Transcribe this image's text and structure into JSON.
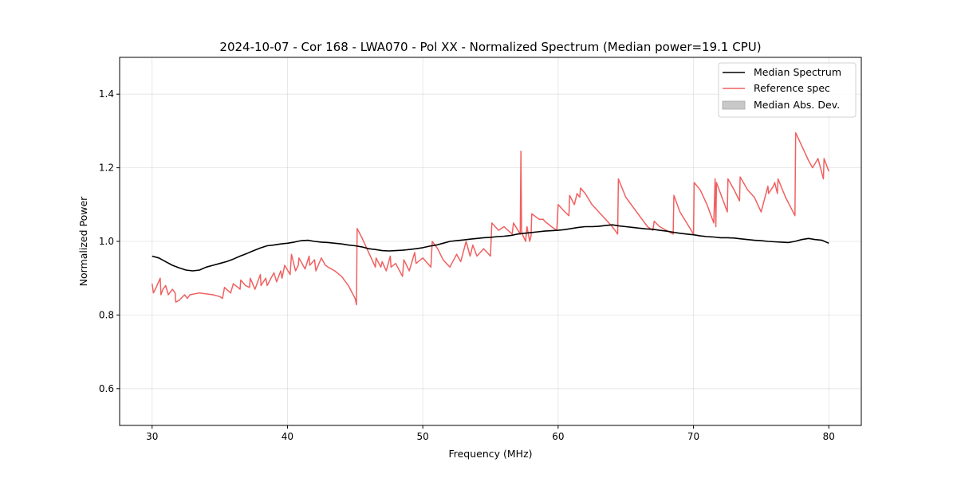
{
  "chart_data": {
    "type": "line",
    "title": "2024-10-07 - Cor 168 - LWA070 - Pol XX - Normalized Spectrum (Median power=19.1 CPU)",
    "xlabel": "Frequency (MHz)",
    "ylabel": "Normalized Power",
    "xlim": [
      27.6,
      82.4
    ],
    "ylim": [
      0.5,
      1.5
    ],
    "xticks": [
      30,
      40,
      50,
      60,
      70,
      80
    ],
    "xtick_labels": [
      "30",
      "40",
      "50",
      "60",
      "70",
      "80"
    ],
    "yticks": [
      0.6,
      0.8,
      1.0,
      1.2,
      1.4
    ],
    "ytick_labels": [
      "0.6",
      "0.8",
      "1.0",
      "1.2",
      "1.4"
    ],
    "grid": true,
    "legend_position": "top-right",
    "legend": [
      {
        "label": "Median Spectrum",
        "kind": "line",
        "color": "#000000"
      },
      {
        "label": "Reference spec",
        "kind": "line",
        "color": "#f06060"
      },
      {
        "label": "Median Abs. Dev.",
        "kind": "patch",
        "color": "#c8c8c8"
      }
    ],
    "series": [
      {
        "name": "Median Spectrum",
        "color": "#000000",
        "x": [
          30,
          30.5,
          31,
          31.5,
          32,
          32.5,
          33,
          33.5,
          34,
          34.5,
          35,
          35.5,
          36,
          36.5,
          37,
          37.5,
          38,
          38.5,
          39,
          39.5,
          40,
          40.5,
          41,
          41.5,
          42,
          42.5,
          43,
          43.5,
          44,
          44.5,
          45,
          45.5,
          46,
          46.5,
          47,
          47.5,
          48,
          48.5,
          49,
          49.5,
          50,
          50.5,
          51,
          51.5,
          52,
          52.5,
          53,
          53.5,
          54,
          54.5,
          55,
          55.5,
          56,
          56.5,
          57,
          57.5,
          58,
          58.5,
          59,
          59.5,
          60,
          60.5,
          61,
          61.5,
          62,
          62.5,
          63,
          63.5,
          64,
          64.5,
          65,
          65.5,
          66,
          66.5,
          67,
          67.5,
          68,
          68.5,
          69,
          69.5,
          70,
          70.5,
          71,
          71.5,
          72,
          72.5,
          73,
          73.5,
          74,
          74.5,
          75,
          75.5,
          76,
          76.5,
          77,
          77.5,
          78,
          78.5,
          79,
          79.5,
          80
        ],
        "values": [
          0.96,
          0.955,
          0.945,
          0.935,
          0.928,
          0.922,
          0.92,
          0.922,
          0.93,
          0.935,
          0.94,
          0.945,
          0.952,
          0.96,
          0.967,
          0.975,
          0.982,
          0.988,
          0.99,
          0.993,
          0.995,
          0.998,
          1.002,
          1.003,
          1.0,
          0.998,
          0.997,
          0.995,
          0.993,
          0.99,
          0.988,
          0.985,
          0.98,
          0.978,
          0.975,
          0.974,
          0.975,
          0.976,
          0.978,
          0.98,
          0.983,
          0.987,
          0.99,
          0.995,
          1.0,
          1.002,
          1.004,
          1.006,
          1.008,
          1.01,
          1.011,
          1.013,
          1.014,
          1.016,
          1.02,
          1.022,
          1.024,
          1.026,
          1.028,
          1.029,
          1.03,
          1.032,
          1.035,
          1.038,
          1.04,
          1.04,
          1.041,
          1.043,
          1.045,
          1.042,
          1.04,
          1.038,
          1.036,
          1.034,
          1.033,
          1.03,
          1.028,
          1.025,
          1.022,
          1.02,
          1.018,
          1.015,
          1.013,
          1.012,
          1.01,
          1.01,
          1.009,
          1.007,
          1.005,
          1.003,
          1.002,
          1.0,
          0.999,
          0.998,
          0.997,
          1.0,
          1.005,
          1.008,
          1.005,
          1.003,
          0.995
        ]
      },
      {
        "name": "Reference spec",
        "color": "#f06060",
        "x": [
          30,
          30.1,
          30.3,
          30.6,
          30.65,
          30.8,
          31.0,
          31.2,
          31.5,
          31.7,
          31.75,
          32.0,
          32.4,
          32.6,
          32.8,
          33.5,
          34.5,
          35.0,
          35.2,
          35.35,
          35.8,
          36.0,
          36.5,
          36.55,
          36.9,
          37.2,
          37.25,
          37.6,
          38.0,
          38.05,
          38.4,
          38.5,
          39.0,
          39.2,
          39.5,
          39.6,
          39.8,
          40.2,
          40.3,
          40.6,
          40.8,
          40.85,
          41.3,
          41.6,
          41.65,
          42.0,
          42.1,
          42.5,
          42.8,
          43.0,
          43.5,
          44.0,
          44.5,
          45.0,
          45.1,
          45.15,
          45.5,
          46.0,
          46.5,
          46.55,
          46.9,
          47.0,
          47.3,
          47.6,
          47.65,
          48.0,
          48.5,
          48.6,
          49.0,
          49.4,
          49.5,
          50.0,
          50.6,
          50.7,
          51.1,
          51.5,
          52.0,
          52.5,
          52.8,
          53.2,
          53.5,
          53.7,
          54.0,
          54.5,
          55.0,
          55.1,
          55.6,
          56.0,
          56.6,
          56.7,
          57.2,
          57.25,
          57.3,
          57.35,
          57.6,
          57.7,
          57.9,
          58.0,
          58.05,
          58.6,
          58.9,
          59.0,
          59.5,
          59.9,
          60.0,
          60.5,
          60.8,
          60.85,
          61.2,
          61.4,
          61.6,
          61.65,
          62.0,
          62.5,
          63.0,
          63.5,
          64.0,
          64.2,
          64.4,
          64.45,
          65.0,
          66.0,
          66.6,
          67.0,
          67.1,
          67.5,
          68.0,
          68.5,
          68.55,
          69.0,
          69.5,
          70.0,
          70.05,
          70.5,
          71.0,
          71.5,
          71.6,
          71.65,
          71.7,
          72.0,
          72.5,
          72.55,
          73.0,
          73.4,
          73.45,
          74.0,
          74.5,
          75.0,
          75.5,
          75.55,
          75.9,
          76.0,
          76.2,
          76.25,
          76.8,
          77.5,
          77.55,
          78.0,
          78.5,
          78.8,
          79.2,
          79.6,
          79.65,
          80
        ],
        "values": [
          0.885,
          0.86,
          0.875,
          0.9,
          0.855,
          0.87,
          0.88,
          0.855,
          0.87,
          0.86,
          0.835,
          0.84,
          0.855,
          0.845,
          0.855,
          0.86,
          0.855,
          0.85,
          0.845,
          0.875,
          0.86,
          0.885,
          0.87,
          0.895,
          0.88,
          0.875,
          0.9,
          0.87,
          0.91,
          0.88,
          0.9,
          0.88,
          0.915,
          0.89,
          0.92,
          0.9,
          0.935,
          0.91,
          0.965,
          0.92,
          0.935,
          0.955,
          0.925,
          0.96,
          0.935,
          0.95,
          0.92,
          0.955,
          0.935,
          0.93,
          0.92,
          0.905,
          0.88,
          0.845,
          0.828,
          1.035,
          1.01,
          0.97,
          0.93,
          0.955,
          0.93,
          0.945,
          0.92,
          0.96,
          0.93,
          0.94,
          0.905,
          0.95,
          0.92,
          0.97,
          0.94,
          0.955,
          0.93,
          1.0,
          0.98,
          0.95,
          0.93,
          0.965,
          0.945,
          1.0,
          0.96,
          0.99,
          0.96,
          0.98,
          0.96,
          1.05,
          1.03,
          1.04,
          1.02,
          1.05,
          1.02,
          1.245,
          1.03,
          1.02,
          1.0,
          1.04,
          1.0,
          1.015,
          1.075,
          1.06,
          1.06,
          1.055,
          1.04,
          1.03,
          1.1,
          1.08,
          1.07,
          1.125,
          1.1,
          1.13,
          1.12,
          1.145,
          1.13,
          1.1,
          1.08,
          1.06,
          1.04,
          1.03,
          1.02,
          1.17,
          1.12,
          1.07,
          1.04,
          1.03,
          1.055,
          1.04,
          1.03,
          1.02,
          1.125,
          1.08,
          1.05,
          1.02,
          1.16,
          1.14,
          1.1,
          1.05,
          1.17,
          1.04,
          1.16,
          1.13,
          1.08,
          1.17,
          1.14,
          1.11,
          1.175,
          1.14,
          1.12,
          1.08,
          1.15,
          1.13,
          1.15,
          1.16,
          1.13,
          1.17,
          1.12,
          1.07,
          1.295,
          1.26,
          1.22,
          1.2,
          1.225,
          1.17,
          1.225,
          1.19
        ]
      }
    ]
  }
}
